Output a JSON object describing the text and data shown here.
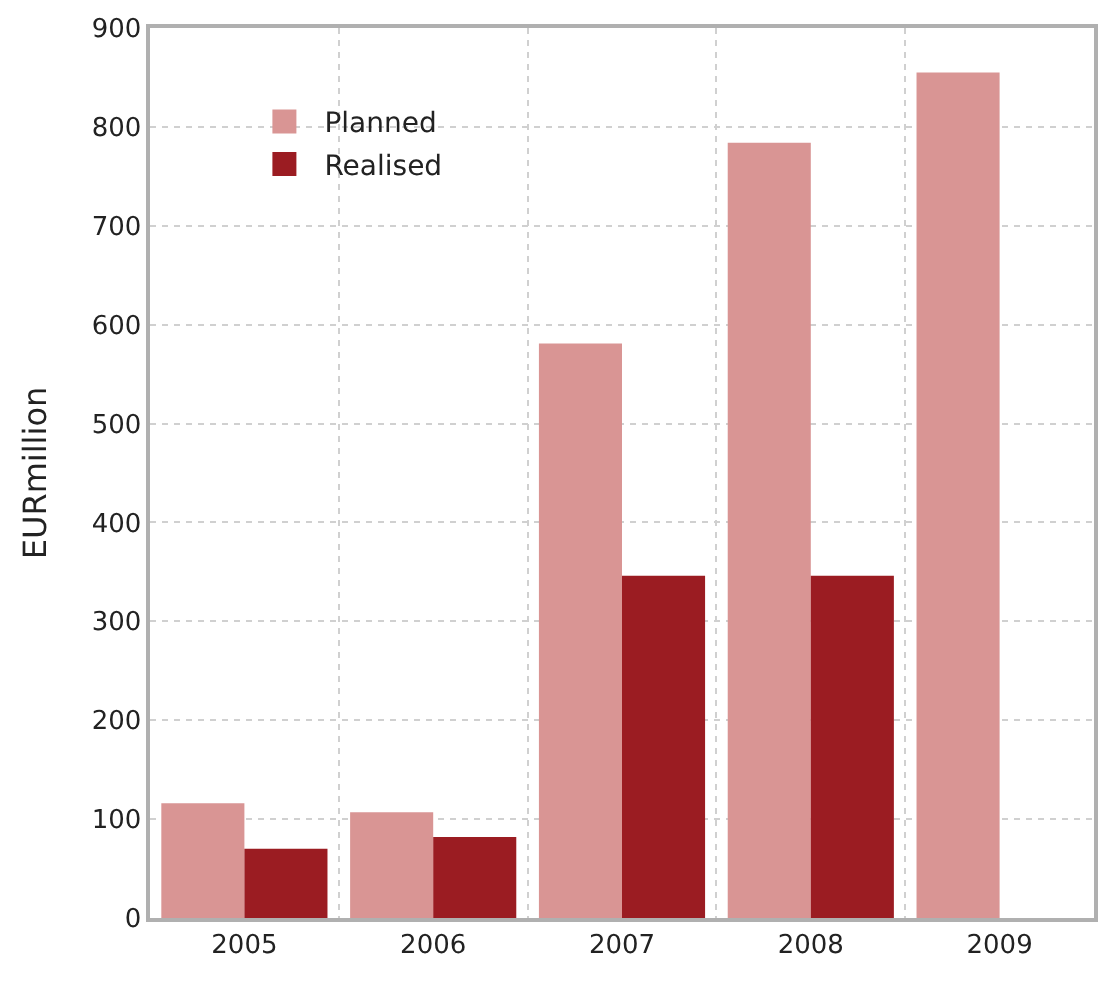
{
  "chart_data": {
    "type": "bar",
    "ylabel": "EURmillion",
    "categories": [
      "2005",
      "2006",
      "2007",
      "2008",
      "2009"
    ],
    "series": [
      {
        "name": "Planned",
        "color": "#d99594",
        "values": [
          116,
          107,
          581,
          784,
          855
        ]
      },
      {
        "name": "Realised",
        "color": "#9b1c22",
        "values": [
          70,
          82,
          346,
          346,
          null
        ]
      }
    ],
    "ylim": [
      0,
      900
    ],
    "yticks": [
      0,
      100,
      200,
      300,
      400,
      500,
      600,
      700,
      800,
      900
    ],
    "grid": true,
    "legend": "top left"
  }
}
